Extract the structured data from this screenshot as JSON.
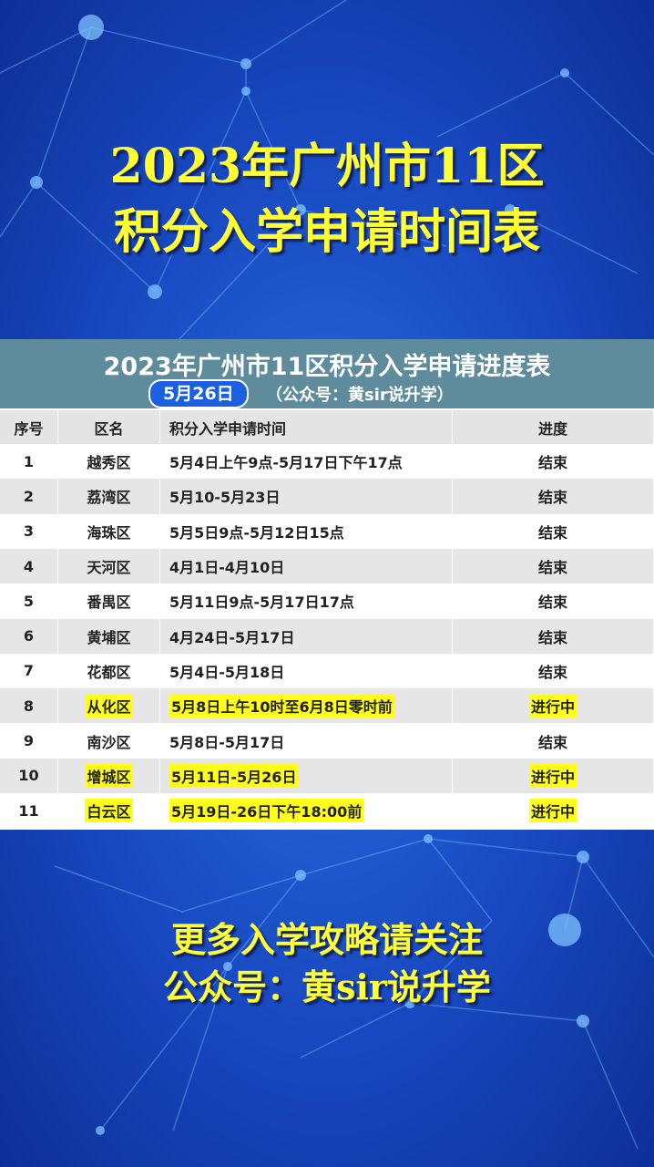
{
  "header": {
    "title_lines": [
      "2023年广州市11区",
      "积分入学申请时间表"
    ]
  },
  "table": {
    "title": "2023年广州市11区积分入学申请进度表",
    "date_badge": "5月26日",
    "subtitle": "（公众号：黄sir说升学）",
    "columns": [
      "序号",
      "区名",
      "积分入学申请时间",
      "进度"
    ],
    "rows": [
      [
        "1",
        "越秀区",
        "5月4日上午9点-5月17日下午17点",
        "结束"
      ],
      [
        "2",
        "荔湾区",
        "5月10-5月23日",
        "结束"
      ],
      [
        "3",
        "海珠区",
        "5月5日9点-5月12日15点",
        "结束"
      ],
      [
        "4",
        "天河区",
        "4月1日-4月10日",
        "结束"
      ],
      [
        "5",
        "番禺区",
        "5月11日9点-5月17日17点",
        "结束"
      ],
      [
        "6",
        "黄埔区",
        "4月24日-5月17日",
        "结束"
      ],
      [
        "7",
        "花都区",
        "5月4日-5月18日",
        "结束"
      ],
      [
        "8",
        "从化区",
        "5月8日上午10时至6月8日零时前",
        "进行中"
      ],
      [
        "9",
        "南沙区",
        "5月8日-5月17日",
        "结束"
      ],
      [
        "10",
        "增城区",
        "5月11日-5月26日",
        "进行中"
      ],
      [
        "11",
        "白云区",
        "5月19日-26日下午18:00前",
        "进行中"
      ]
    ],
    "highlight": {
      "color": "#ffff1a",
      "rows": [
        7,
        9,
        10
      ]
    }
  },
  "footer": {
    "lines": [
      "更多入学攻略请关注",
      "公众号：黄sir说升学"
    ]
  }
}
